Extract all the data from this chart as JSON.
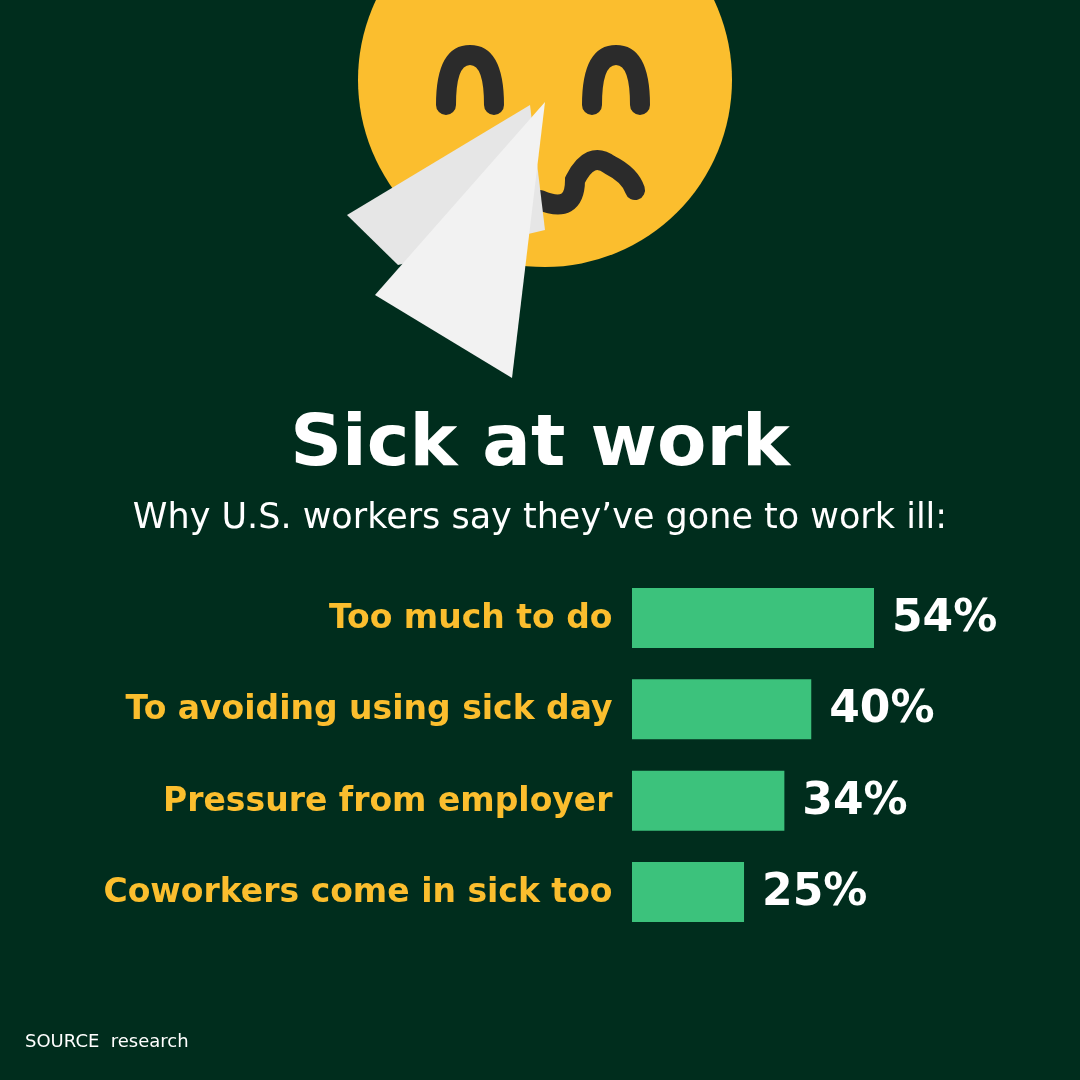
{
  "chart_data": {
    "type": "bar",
    "orientation": "horizontal",
    "title": "Sick at work",
    "subtitle": "Why U.S. workers say they’ve gone to work ill:",
    "categories": [
      "Too much to do",
      "To avoiding using sick day",
      "Pressure from employer",
      "Coworkers come in sick too"
    ],
    "values": [
      54,
      40,
      34,
      25
    ],
    "color": "#3cc27c",
    "value_labels": [
      "54%",
      "40%",
      "34%",
      "25%"
    ],
    "annotations": [
      "SOURCE  research"
    ]
  }
}
